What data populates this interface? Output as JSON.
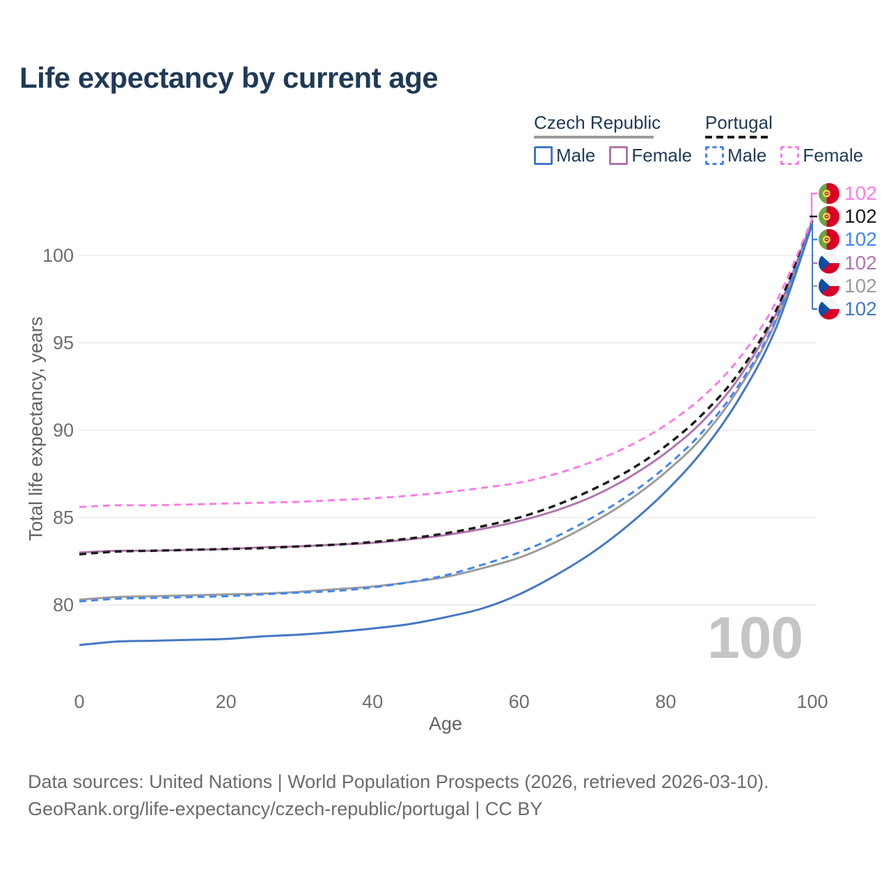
{
  "title": "Life expectancy by current age",
  "legend": {
    "groups": [
      {
        "title": "Czech Republic",
        "underline_style": "solid",
        "underline_color": "#9c9c9c",
        "items": [
          {
            "label": "Male",
            "color": "#4577c4",
            "dashed": false
          },
          {
            "label": "Female",
            "color": "#b175ae",
            "dashed": false
          }
        ]
      },
      {
        "title": "Portugal",
        "underline_style": "dashed",
        "underline_color": "#1c1c1c",
        "items": [
          {
            "label": "Male",
            "color": "#3f86f5",
            "dashed": true
          },
          {
            "label": "Female",
            "color": "#fb7de7",
            "dashed": true
          }
        ]
      }
    ]
  },
  "chart_data": {
    "type": "line",
    "title": "Life expectancy by current age",
    "xlabel": "Age",
    "ylabel": "Total life expectancy, years",
    "xlim": [
      0,
      100
    ],
    "ylim": [
      76.5,
      103
    ],
    "x_ticks": [
      0,
      20,
      40,
      60,
      80,
      100
    ],
    "y_ticks": [
      80,
      85,
      90,
      95,
      100
    ],
    "grid": "horizontal",
    "ages": [
      0,
      5,
      10,
      15,
      20,
      25,
      30,
      35,
      40,
      45,
      50,
      55,
      60,
      65,
      70,
      75,
      80,
      85,
      90,
      95,
      100
    ],
    "series": [
      {
        "id": "czech-female",
        "name": "Czech Republic Female",
        "country": "Czech Republic",
        "sex": "Female",
        "color": "#b175ae",
        "dashed": false,
        "width": 3,
        "values": [
          83.0,
          83.1,
          83.1,
          83.15,
          83.2,
          83.3,
          83.35,
          83.45,
          83.55,
          83.75,
          84.0,
          84.35,
          84.8,
          85.4,
          86.2,
          87.3,
          88.7,
          90.5,
          93.0,
          96.6,
          102.0
        ]
      },
      {
        "id": "portugal-total",
        "name": "Portugal",
        "country": "Portugal",
        "sex": "Both",
        "color": "#1c1c1c",
        "dashed": true,
        "width": 3.5,
        "values": [
          82.9,
          83.05,
          83.1,
          83.15,
          83.2,
          83.25,
          83.35,
          83.45,
          83.6,
          83.8,
          84.1,
          84.5,
          85.0,
          85.7,
          86.6,
          87.7,
          89.1,
          90.9,
          93.3,
          96.8,
          102.0
        ]
      },
      {
        "id": "czech-total",
        "name": "Czech Republic",
        "country": "Czech Republic",
        "sex": "Both",
        "color": "#9c9c9c",
        "dashed": false,
        "width": 3,
        "values": [
          80.3,
          80.45,
          80.5,
          80.55,
          80.6,
          80.65,
          80.75,
          80.9,
          81.05,
          81.3,
          81.6,
          82.1,
          82.7,
          83.6,
          84.7,
          86.0,
          87.6,
          89.6,
          92.4,
          96.2,
          101.9
        ]
      },
      {
        "id": "portugal-male",
        "name": "Portugal Male",
        "country": "Portugal",
        "sex": "Male",
        "color": "#3f86f5",
        "dashed": true,
        "width": 3,
        "values": [
          80.2,
          80.35,
          80.4,
          80.45,
          80.5,
          80.6,
          80.7,
          80.8,
          81.0,
          81.3,
          81.7,
          82.3,
          83.0,
          83.9,
          85.0,
          86.3,
          87.9,
          89.9,
          92.6,
          96.3,
          101.9
        ]
      },
      {
        "id": "czech-male",
        "name": "Czech Republic Male",
        "country": "Czech Republic",
        "sex": "Male",
        "color": "#4577c4",
        "dashed": false,
        "width": 3,
        "values": [
          77.7,
          77.9,
          77.95,
          78.0,
          78.05,
          78.2,
          78.3,
          78.45,
          78.65,
          78.9,
          79.3,
          79.8,
          80.6,
          81.7,
          83.0,
          84.6,
          86.5,
          88.8,
          91.8,
          95.8,
          101.8
        ]
      },
      {
        "id": "portugal-female",
        "name": "Portugal Female",
        "country": "Portugal",
        "sex": "Female",
        "color": "#fb7de7",
        "dashed": true,
        "width": 3,
        "values": [
          85.6,
          85.7,
          85.7,
          85.75,
          85.8,
          85.85,
          85.9,
          86.0,
          86.1,
          86.25,
          86.45,
          86.7,
          87.0,
          87.5,
          88.2,
          89.1,
          90.3,
          91.9,
          94.1,
          97.3,
          102.1
        ]
      }
    ]
  },
  "end_labels": [
    {
      "flag": "portugal",
      "series": "Portugal Female",
      "value": "102",
      "color": "#fb7de7"
    },
    {
      "flag": "portugal",
      "series": "Portugal",
      "value": "102",
      "color": "#1c1c1c"
    },
    {
      "flag": "portugal",
      "series": "Portugal Male",
      "value": "102",
      "color": "#3f86f5"
    },
    {
      "flag": "czech",
      "series": "Czech Republic Female",
      "value": "102",
      "color": "#b175ae"
    },
    {
      "flag": "czech",
      "series": "Czech Republic",
      "value": "102",
      "color": "#9c9c9c"
    },
    {
      "flag": "czech",
      "series": "Czech Republic Male",
      "value": "102",
      "color": "#4577c4"
    }
  ],
  "watermark": "100",
  "footer": {
    "lines": [
      "Data sources: United Nations | World Population Prospects (2026, retrieved 2026-03-10).",
      "GeoRank.org/life-expectancy/czech-republic/portugal | CC BY"
    ]
  },
  "colors": {
    "title_text": "#1f3a56",
    "tick_text": "#6e6e6e",
    "axis_title_text": "#5f6368",
    "gridline": "#eaeaea",
    "watermark": "#c5c5c5",
    "footer_text": "#6b6b6b"
  }
}
